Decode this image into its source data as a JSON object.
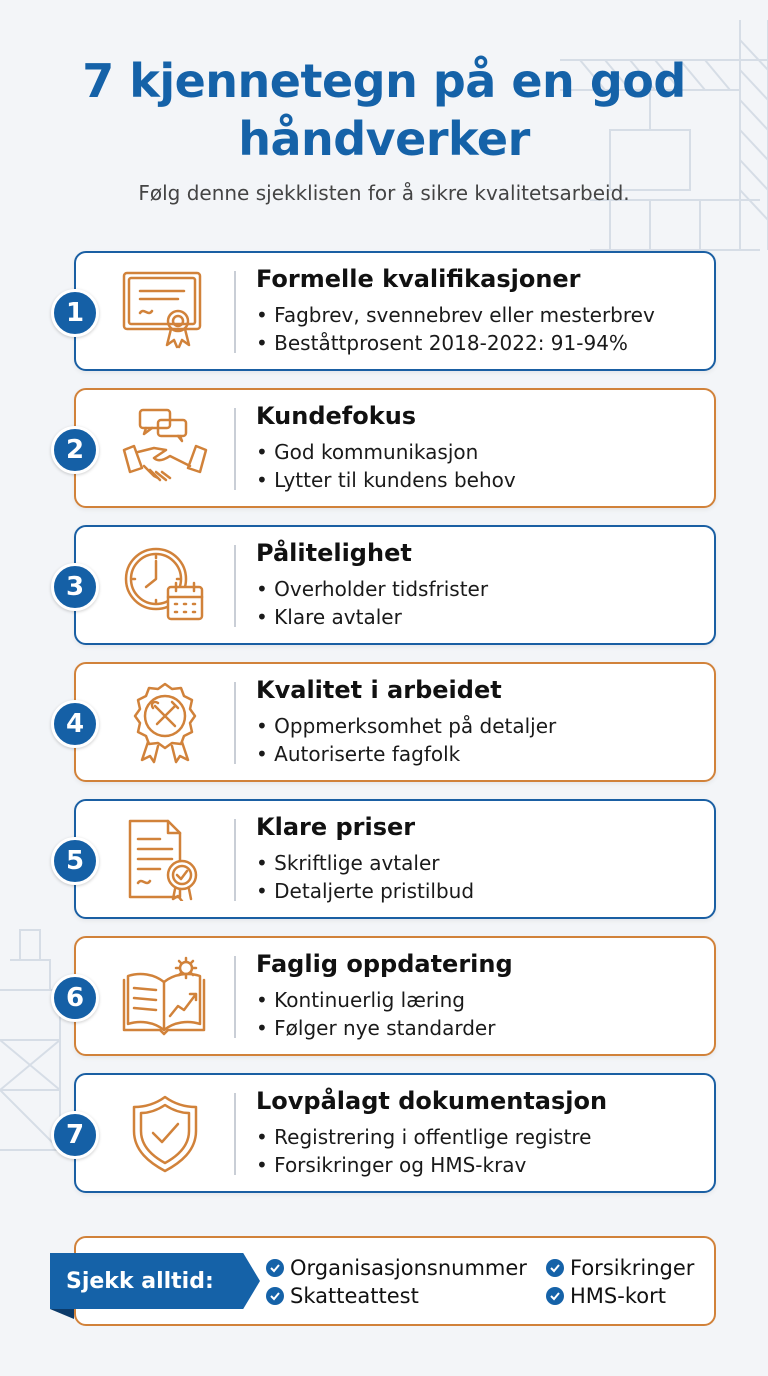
{
  "title": "7 kjennetegn på en god håndverker",
  "subtitle": "Følg denne sjekklisten for å sikre kvalitetsarbeid.",
  "colors": {
    "blue": "#1562a8",
    "orange": "#d1823a",
    "background": "#f3f5f8"
  },
  "items": [
    {
      "number": "1",
      "heading": "Formelle kvalifikasjoner",
      "bullets": [
        "Fagbrev, svennebrev eller mesterbrev",
        "Beståttprosent 2018-2022: 91-94%"
      ],
      "icon": "certificate-icon",
      "border": "blue"
    },
    {
      "number": "2",
      "heading": "Kundefokus",
      "bullets": [
        "God kommunikasjon",
        "Lytter til kundens behov"
      ],
      "icon": "handshake-icon",
      "border": "orange"
    },
    {
      "number": "3",
      "heading": "Pålitelighet",
      "bullets": [
        "Overholder tidsfrister",
        "Klare avtaler"
      ],
      "icon": "clock-calendar-icon",
      "border": "blue"
    },
    {
      "number": "4",
      "heading": "Kvalitet i arbeidet",
      "bullets": [
        "Oppmerksomhet på detaljer",
        "Autoriserte fagfolk"
      ],
      "icon": "tools-badge-icon",
      "border": "orange"
    },
    {
      "number": "5",
      "heading": "Klare priser",
      "bullets": [
        "Skriftlige avtaler",
        "Detaljerte pristilbud"
      ],
      "icon": "document-seal-icon",
      "border": "blue"
    },
    {
      "number": "6",
      "heading": "Faglig oppdatering",
      "bullets": [
        "Kontinuerlig læring",
        "Følger nye standarder"
      ],
      "icon": "book-growth-icon",
      "border": "orange"
    },
    {
      "number": "7",
      "heading": "Lovpålagt dokumentasjon",
      "bullets": [
        "Registrering i offentlige registre",
        "Forsikringer og HMS-krav"
      ],
      "icon": "shield-check-icon",
      "border": "blue"
    }
  ],
  "footer": {
    "label": "Sjekk alltid:",
    "checks": [
      "Organisasjonsnummer",
      "Forsikringer",
      "Skatteattest",
      "HMS-kort"
    ]
  }
}
